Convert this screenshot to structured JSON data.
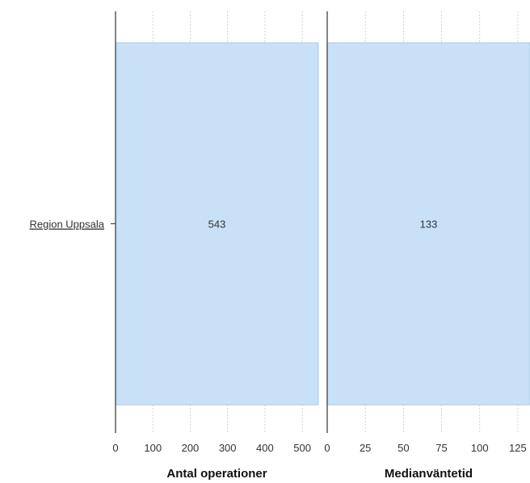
{
  "chart_data": {
    "type": "bar",
    "orientation": "horizontal",
    "categories": [
      "Region Uppsala"
    ],
    "colors": {
      "bar_fill": "#c8e1f7",
      "bar_stroke": "#a9c9ea",
      "axis": "#333333",
      "grid": "#c8c8c8"
    },
    "grid": true,
    "panels": [
      {
        "xlabel": "Antal operationer",
        "xlim": [
          0,
          543
        ],
        "ticks": [
          0,
          100,
          200,
          300,
          400,
          500
        ],
        "tick_labels": [
          "0",
          "100",
          "200",
          "300",
          "400",
          "500"
        ],
        "series": [
          {
            "values": [
              543
            ],
            "data_labels": [
              "543"
            ]
          }
        ]
      },
      {
        "xlabel": "Medianväntetid",
        "xlim": [
          0,
          133
        ],
        "ticks": [
          0,
          25,
          50,
          75,
          100,
          125
        ],
        "tick_labels": [
          "0",
          "25",
          "50",
          "75",
          "100",
          "125"
        ],
        "series": [
          {
            "values": [
              133
            ],
            "data_labels": [
              "133"
            ]
          }
        ]
      }
    ]
  }
}
